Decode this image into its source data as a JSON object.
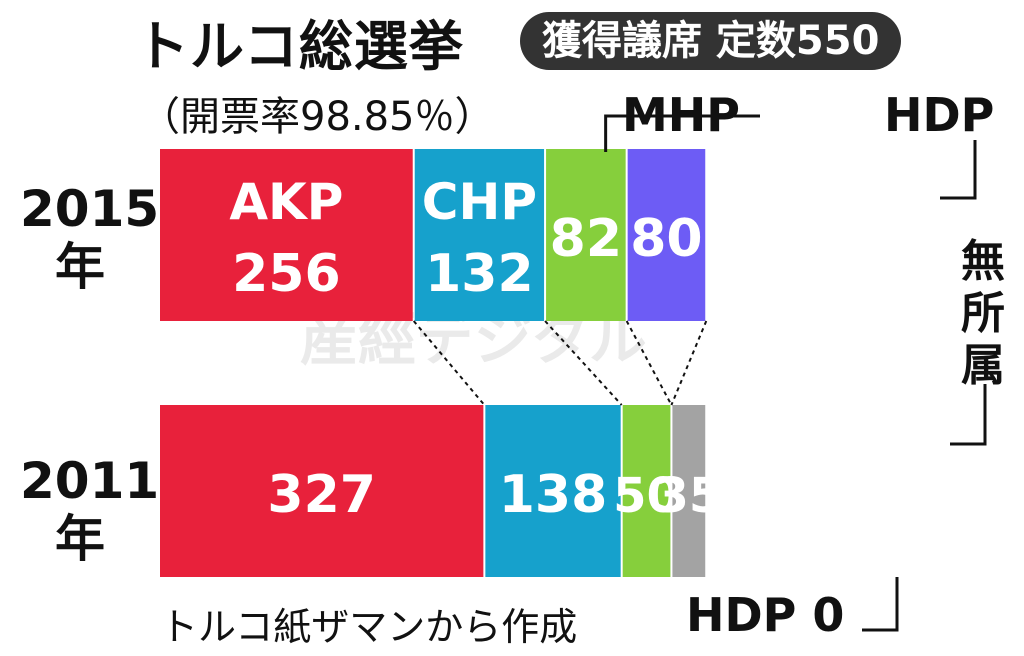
{
  "header": {
    "title": "トルコ総選挙",
    "subtitle": "獲得議席 定数550",
    "count_status": "（開票率98.85％）"
  },
  "footer": {
    "source": "トルコ紙ザマンから作成"
  },
  "watermark": "産經デジタル",
  "callouts": {
    "mhp": "MHP",
    "hdp": "HDP",
    "independent": "無所属",
    "hdp_zero": "HDP 0"
  },
  "colors": {
    "AKP": "#e8213b",
    "CHP": "#16a1cc",
    "MHP": "#86cf3c",
    "HDP": "#6d5cf5",
    "無所属": "#a3a3a3"
  },
  "chart_data": {
    "type": "bar",
    "orientation": "horizontal",
    "stacked": true,
    "total_seats": 550,
    "categories": [
      "2015年",
      "2011年"
    ],
    "series": [
      {
        "name": "AKP",
        "values": [
          256,
          327
        ]
      },
      {
        "name": "CHP",
        "values": [
          132,
          138
        ]
      },
      {
        "name": "MHP",
        "values": [
          82,
          50
        ]
      },
      {
        "name": "HDP",
        "values": [
          80,
          0
        ]
      },
      {
        "name": "無所属",
        "values": [
          0,
          35
        ]
      }
    ],
    "inline_labels": {
      "2015年": {
        "AKP": "AKP",
        "CHP": "CHP"
      }
    }
  }
}
